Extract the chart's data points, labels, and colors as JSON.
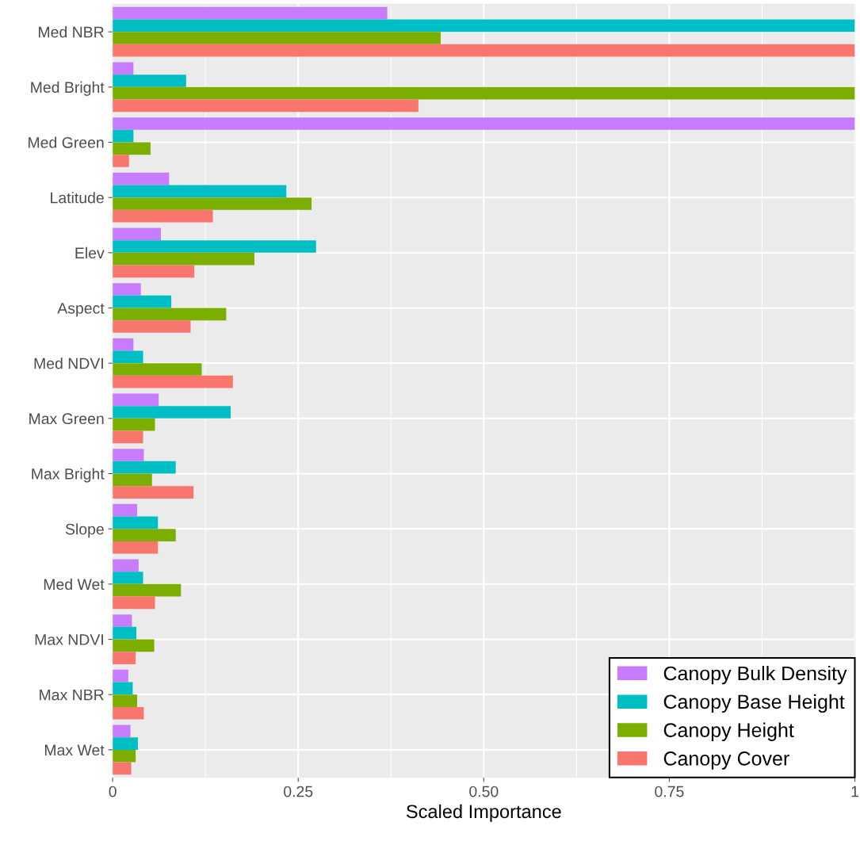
{
  "chart_data": {
    "type": "bar",
    "orientation": "horizontal",
    "xlabel": "Scaled Importance",
    "categories": [
      "Med NBR",
      "Med Bright",
      "Med Green",
      "Latitude",
      "Elev",
      "Aspect",
      "Med NDVI",
      "Max Green",
      "Max Bright",
      "Slope",
      "Med Wet",
      "Max NDVI",
      "Max NBR",
      "Max Wet"
    ],
    "series": [
      {
        "name": "Canopy Bulk Density",
        "color": "#c77cff",
        "values": [
          0.37,
          0.028,
          1.0,
          0.076,
          0.065,
          0.038,
          0.028,
          0.062,
          0.042,
          0.033,
          0.035,
          0.026,
          0.021,
          0.024
        ]
      },
      {
        "name": "Canopy Base Height",
        "color": "#00bfc4",
        "values": [
          1.0,
          0.099,
          0.028,
          0.234,
          0.274,
          0.079,
          0.041,
          0.159,
          0.085,
          0.061,
          0.041,
          0.032,
          0.027,
          0.034
        ]
      },
      {
        "name": "Canopy Height",
        "color": "#7cae00",
        "values": [
          0.442,
          1.0,
          0.051,
          0.268,
          0.191,
          0.153,
          0.12,
          0.057,
          0.053,
          0.085,
          0.092,
          0.056,
          0.033,
          0.031
        ]
      },
      {
        "name": "Canopy Cover",
        "color": "#f8766d",
        "values": [
          1.0,
          0.412,
          0.022,
          0.135,
          0.11,
          0.105,
          0.162,
          0.041,
          0.109,
          0.061,
          0.057,
          0.031,
          0.042,
          0.025
        ]
      }
    ],
    "xlim": [
      0,
      1
    ],
    "xticks": [
      0,
      0.25,
      {
        "value": 0.5,
        "label": "0.50"
      },
      0.75,
      1
    ],
    "grid": true,
    "legend": "bottom right"
  }
}
